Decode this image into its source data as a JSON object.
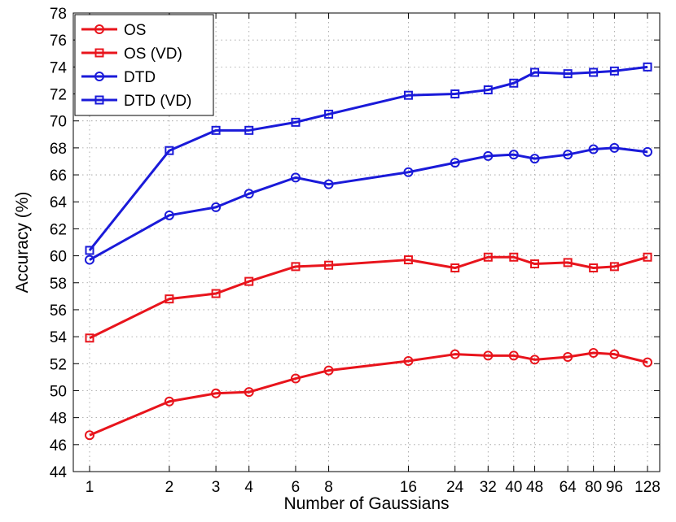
{
  "chart_data": {
    "type": "line",
    "title": "",
    "xlabel": "Number of Gaussians",
    "ylabel": "Accuracy (%)",
    "ylim": [
      44,
      78
    ],
    "x_scale": "log2",
    "x": [
      1,
      2,
      3,
      4,
      6,
      8,
      16,
      24,
      32,
      40,
      48,
      64,
      80,
      96,
      128
    ],
    "x_tick_labels": [
      "1",
      "2",
      "3",
      "4",
      "6",
      "8",
      "16",
      "24",
      "32",
      "40",
      "48",
      "64",
      "80",
      "96",
      "128"
    ],
    "y_ticks": [
      44,
      46,
      48,
      50,
      52,
      54,
      56,
      58,
      60,
      62,
      64,
      66,
      68,
      70,
      72,
      74,
      76,
      78
    ],
    "grid": true,
    "legend_position": "top-left",
    "series": [
      {
        "name": "OS",
        "color": "#e8141c",
        "marker": "circle",
        "values": [
          46.7,
          49.2,
          49.8,
          49.9,
          50.9,
          51.5,
          52.2,
          52.7,
          52.6,
          52.6,
          52.3,
          52.5,
          52.8,
          52.7,
          52.1
        ]
      },
      {
        "name": "OS (VD)",
        "color": "#e8141c",
        "marker": "square",
        "values": [
          53.9,
          56.8,
          57.2,
          58.1,
          59.2,
          59.3,
          59.7,
          59.1,
          59.9,
          59.9,
          59.4,
          59.5,
          59.1,
          59.2,
          59.9
        ]
      },
      {
        "name": "DTD",
        "color": "#1a1ad9",
        "marker": "circle",
        "values": [
          59.7,
          63.0,
          63.6,
          64.6,
          65.8,
          65.3,
          66.2,
          66.9,
          67.4,
          67.5,
          67.2,
          67.5,
          67.9,
          68.0,
          67.7
        ]
      },
      {
        "name": "DTD (VD)",
        "color": "#1a1ad9",
        "marker": "square",
        "values": [
          60.4,
          67.8,
          69.3,
          69.3,
          69.9,
          70.5,
          71.9,
          72.0,
          72.3,
          72.8,
          73.6,
          73.5,
          73.6,
          73.7,
          74.0
        ]
      }
    ]
  }
}
